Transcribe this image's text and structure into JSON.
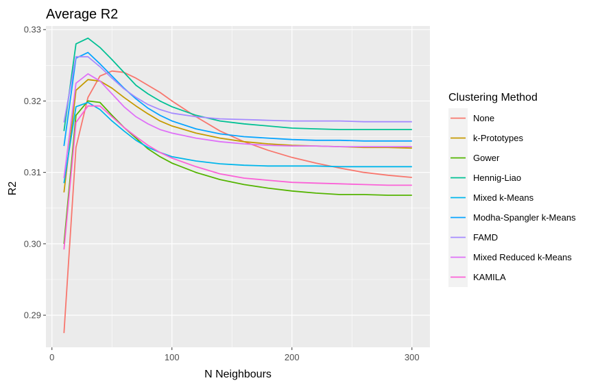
{
  "chart_data": {
    "type": "line",
    "title": "Average R2",
    "xlabel": "N Neighbours",
    "ylabel": "R2",
    "xlim": [
      -5,
      315
    ],
    "ylim": [
      0.2855,
      0.3305
    ],
    "x_ticks": [
      0,
      100,
      200,
      300
    ],
    "y_ticks": [
      0.29,
      0.3,
      0.31,
      0.32,
      0.33
    ],
    "x_tick_labels": [
      "0",
      "100",
      "200",
      "300"
    ],
    "y_tick_labels": [
      "0.29",
      "0.30",
      "0.31",
      "0.32",
      "0.33"
    ],
    "grid": true,
    "legend": {
      "title": "Clustering Method",
      "position": "right"
    },
    "x": [
      10,
      20,
      30,
      40,
      50,
      60,
      70,
      80,
      90,
      100,
      120,
      140,
      160,
      180,
      200,
      220,
      240,
      260,
      280,
      300
    ],
    "series": [
      {
        "name": "None",
        "color": "#F8766D",
        "values": [
          0.2875,
          0.3135,
          0.3205,
          0.3235,
          0.3242,
          0.324,
          0.3232,
          0.3222,
          0.3212,
          0.32,
          0.3178,
          0.3158,
          0.3143,
          0.3131,
          0.3121,
          0.3113,
          0.3106,
          0.31,
          0.3096,
          0.3093
        ]
      },
      {
        "name": "k-Prototypes",
        "color": "#C49A00",
        "values": [
          0.3072,
          0.3215,
          0.323,
          0.3228,
          0.3218,
          0.3205,
          0.3193,
          0.3182,
          0.3172,
          0.3165,
          0.3155,
          0.3148,
          0.3143,
          0.314,
          0.3138,
          0.3137,
          0.3136,
          0.3135,
          0.3135,
          0.3134
        ]
      },
      {
        "name": "Gower",
        "color": "#53B400",
        "values": [
          0.3,
          0.318,
          0.32,
          0.3198,
          0.318,
          0.3163,
          0.3148,
          0.3133,
          0.3122,
          0.3113,
          0.31,
          0.309,
          0.3083,
          0.3078,
          0.3074,
          0.3071,
          0.3069,
          0.3069,
          0.3068,
          0.3068
        ]
      },
      {
        "name": "Hennig-Liao",
        "color": "#00C094",
        "values": [
          0.3158,
          0.328,
          0.3288,
          0.3275,
          0.3258,
          0.324,
          0.3222,
          0.321,
          0.32,
          0.3192,
          0.318,
          0.3172,
          0.3168,
          0.3165,
          0.3162,
          0.3161,
          0.316,
          0.316,
          0.316,
          0.316
        ]
      },
      {
        "name": "Mixed k-Means",
        "color": "#00B6EB",
        "values": [
          0.3085,
          0.3192,
          0.3198,
          0.3188,
          0.3172,
          0.3158,
          0.3145,
          0.3135,
          0.3128,
          0.3122,
          0.3116,
          0.3112,
          0.311,
          0.3109,
          0.3109,
          0.3109,
          0.3108,
          0.3108,
          0.3108,
          0.3108
        ]
      },
      {
        "name": "Modha-Spangler k-Means",
        "color": "#06A4FF",
        "values": [
          0.3137,
          0.326,
          0.3268,
          0.3252,
          0.3235,
          0.3218,
          0.3203,
          0.319,
          0.318,
          0.3172,
          0.3161,
          0.3154,
          0.315,
          0.3148,
          0.3146,
          0.3145,
          0.3145,
          0.3144,
          0.3144,
          0.3144
        ]
      },
      {
        "name": "FAMD",
        "color": "#A58AFF",
        "values": [
          0.317,
          0.3262,
          0.3262,
          0.3248,
          0.3232,
          0.3217,
          0.3205,
          0.3195,
          0.3188,
          0.3183,
          0.3178,
          0.3175,
          0.3174,
          0.3173,
          0.3172,
          0.3172,
          0.3172,
          0.3171,
          0.3171,
          0.3171
        ]
      },
      {
        "name": "Mixed Reduced k-Means",
        "color": "#DF70F8",
        "values": [
          0.3092,
          0.3225,
          0.3238,
          0.3228,
          0.321,
          0.3192,
          0.3178,
          0.3168,
          0.316,
          0.3155,
          0.3148,
          0.3143,
          0.314,
          0.3138,
          0.3137,
          0.3137,
          0.3136,
          0.3136,
          0.3136,
          0.3136
        ]
      },
      {
        "name": "KAMILA",
        "color": "#FB61D7",
        "values": [
          0.2992,
          0.317,
          0.3193,
          0.3193,
          0.3178,
          0.3163,
          0.315,
          0.3138,
          0.3128,
          0.312,
          0.3108,
          0.3098,
          0.3092,
          0.3089,
          0.3086,
          0.3085,
          0.3084,
          0.3083,
          0.3082,
          0.3082
        ]
      }
    ]
  }
}
